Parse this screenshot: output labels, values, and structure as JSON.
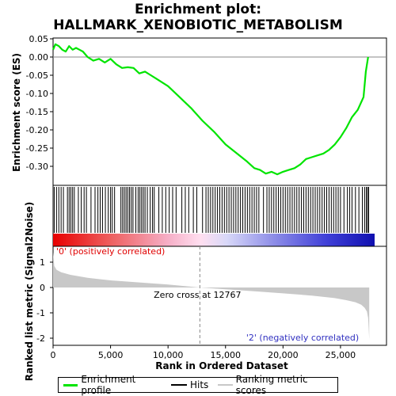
{
  "title_lines": [
    "Enrichment plot:",
    "HALLMARK_XENOBIOTIC_METABOLISM"
  ],
  "colors": {
    "es_line": "#00e400",
    "hits": "#000000",
    "metric": "#c8c8c8",
    "pos_label": "#e00000",
    "neg_label": "#3030c0",
    "zero_line": "#888888"
  },
  "chart_data": [
    {
      "type": "line",
      "name": "enrichment-profile",
      "ylabel": "Enrichment score (ES)",
      "xlim": [
        0,
        27500
      ],
      "ylim": [
        -0.34,
        0.05
      ],
      "yticks": [
        0.05,
        0.0,
        -0.05,
        -0.1,
        -0.15,
        -0.2,
        -0.25,
        -0.3
      ],
      "ytick_labels": [
        "0.05",
        "0.00",
        "-0.05",
        "-0.10",
        "-0.15",
        "-0.20",
        "-0.25",
        "-0.30"
      ],
      "x": [
        0,
        200,
        500,
        800,
        1100,
        1400,
        1700,
        2000,
        2300,
        2600,
        3000,
        3500,
        4000,
        4500,
        5000,
        5500,
        6000,
        6500,
        7000,
        7500,
        8000,
        8500,
        9000,
        10000,
        11000,
        12000,
        13000,
        14000,
        15000,
        16000,
        16800,
        17500,
        18000,
        18500,
        19000,
        19500,
        20000,
        20500,
        21000,
        21500,
        22000,
        22500,
        23000,
        23500,
        24000,
        24500,
        25000,
        25500,
        26000,
        26500,
        27000,
        27200,
        27400
      ],
      "y": [
        0.02,
        0.035,
        0.03,
        0.02,
        0.015,
        0.03,
        0.02,
        0.025,
        0.02,
        0.015,
        0.0,
        -0.01,
        -0.005,
        -0.015,
        -0.005,
        -0.02,
        -0.03,
        -0.028,
        -0.03,
        -0.045,
        -0.04,
        -0.05,
        -0.06,
        -0.08,
        -0.11,
        -0.14,
        -0.175,
        -0.205,
        -0.24,
        -0.265,
        -0.285,
        -0.305,
        -0.31,
        -0.32,
        -0.315,
        -0.322,
        -0.315,
        -0.31,
        -0.305,
        -0.295,
        -0.28,
        -0.275,
        -0.27,
        -0.265,
        -0.255,
        -0.24,
        -0.22,
        -0.195,
        -0.165,
        -0.145,
        -0.11,
        -0.04,
        0.0
      ]
    },
    {
      "type": "table",
      "name": "hits",
      "hit_positions": [
        100,
        300,
        500,
        700,
        900,
        1250,
        1400,
        1550,
        1700,
        1850,
        2200,
        2450,
        2700,
        2900,
        3300,
        3650,
        3900,
        4100,
        4300,
        4550,
        4800,
        5000,
        5150,
        5350,
        5900,
        6050,
        6200,
        6350,
        6500,
        6650,
        6800,
        6950,
        7200,
        7400,
        7550,
        7700,
        7850,
        8000,
        8200,
        8450,
        8650,
        8800,
        9200,
        9500,
        9800,
        10100,
        10400,
        10700,
        11200,
        11500,
        11800,
        12200,
        12500,
        13000,
        13300,
        13500,
        13700,
        13900,
        14100,
        14300,
        14500,
        14700,
        14900,
        15100,
        15300,
        15500,
        15700,
        15900,
        16100,
        16300,
        16500,
        16700,
        16900,
        17100,
        17300,
        17500,
        17700,
        17900,
        18300,
        18600,
        18800,
        19000,
        19200,
        19400,
        19600,
        19800,
        20000,
        20200,
        20400,
        20600,
        20800,
        21000,
        21200,
        21400,
        21600,
        21800,
        22000,
        22200,
        22400,
        22600,
        22800,
        23000,
        23200,
        23400,
        23600,
        23800,
        24000,
        24200,
        24400,
        24600,
        24800,
        25000,
        25300,
        25600,
        25800,
        26000,
        26300,
        26600,
        26900,
        27100,
        27250,
        27350,
        27450
      ]
    },
    {
      "type": "area",
      "name": "ranked-list-metric",
      "ylabel": "Ranked list metric (Signal2Noise)",
      "xlabel": "Rank in Ordered Dataset",
      "xlim": [
        0,
        29000
      ],
      "ylim": [
        -2.2,
        1.5
      ],
      "xticks": [
        0,
        5000,
        10000,
        15000,
        20000,
        25000
      ],
      "xtick_labels": [
        "0",
        "5,000",
        "10,000",
        "15,000",
        "20,000",
        "25,000"
      ],
      "yticks": [
        1,
        0,
        -1,
        -2
      ],
      "ytick_labels": [
        "1",
        "0",
        "-1",
        "-2"
      ],
      "x": [
        0,
        100,
        300,
        700,
        1500,
        3000,
        5000,
        7500,
        10000,
        12767,
        15000,
        17500,
        20000,
        22500,
        24500,
        25500,
        26300,
        26800,
        27100,
        27300,
        27400,
        27450,
        27500
      ],
      "y": [
        1.4,
        0.85,
        0.7,
        0.6,
        0.5,
        0.38,
        0.28,
        0.2,
        0.12,
        0.0,
        -0.07,
        -0.15,
        -0.23,
        -0.32,
        -0.42,
        -0.5,
        -0.58,
        -0.68,
        -0.8,
        -0.95,
        -1.2,
        -1.6,
        -2.05
      ],
      "annotations": {
        "zero_cross": "Zero cross at 12767",
        "zero_cross_rank": 12767,
        "pos_label": "'0' (positively correlated)",
        "neg_label": "'2' (negatively correlated)"
      }
    }
  ],
  "legend": {
    "items": [
      {
        "label": "Enrichment profile",
        "color": "#00e400"
      },
      {
        "label": "Hits",
        "color": "#000000"
      },
      {
        "label": "Ranking metric scores",
        "color": "#c8c8c8"
      }
    ]
  }
}
